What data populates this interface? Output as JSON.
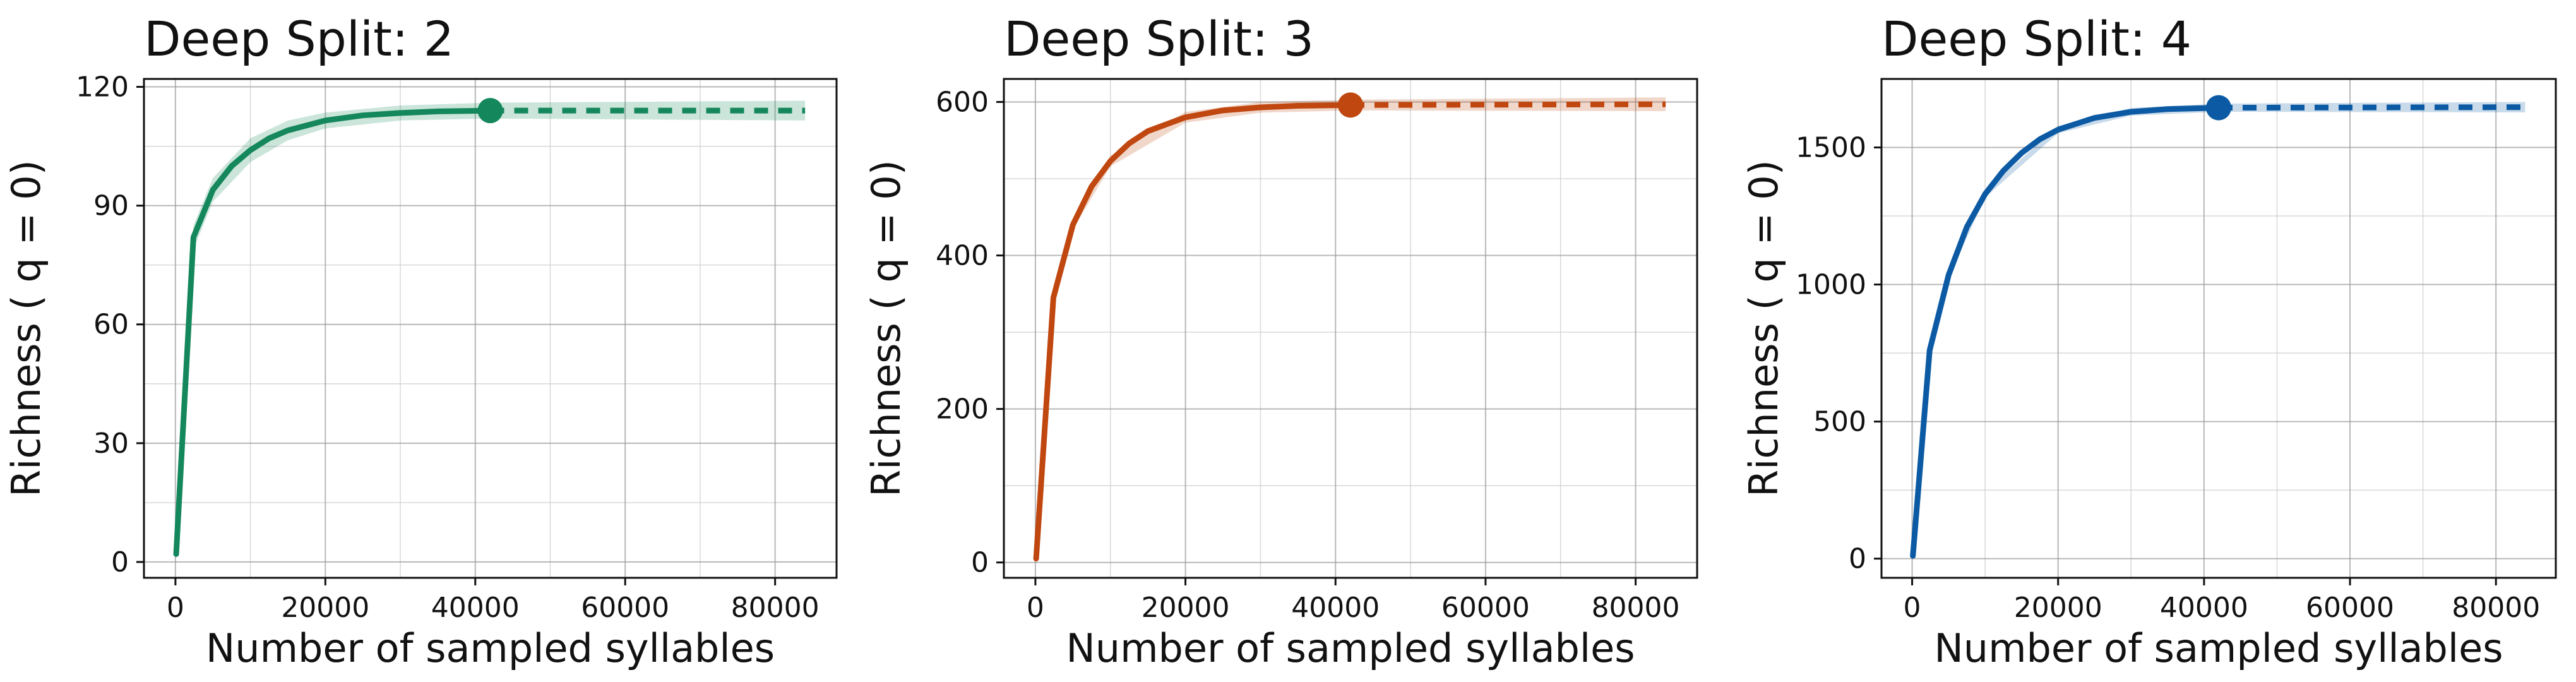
{
  "chart_data": [
    {
      "type": "line",
      "title": "Deep Split: 2",
      "xlabel": "Number of sampled syllables",
      "ylabel": "Richness  ( q = 0)",
      "xlim": [
        -4200,
        88200
      ],
      "ylim": [
        -4,
        122
      ],
      "xticks": [
        0,
        20000,
        40000,
        60000,
        80000
      ],
      "yticks": [
        0,
        30,
        60,
        90,
        120
      ],
      "color": "#14875c",
      "grid": true,
      "observed_point": {
        "x": 42000,
        "y": 114
      },
      "interpolated": [
        [
          100,
          2
        ],
        [
          2400,
          82
        ],
        [
          5000,
          94
        ],
        [
          7500,
          100
        ],
        [
          10000,
          104
        ],
        [
          12500,
          107
        ],
        [
          15000,
          109
        ],
        [
          20000,
          111.5
        ],
        [
          25000,
          112.8
        ],
        [
          30000,
          113.4
        ],
        [
          35000,
          113.8
        ],
        [
          42000,
          114
        ]
      ],
      "extrapolated": [
        [
          42000,
          114
        ],
        [
          84000,
          114
        ]
      ],
      "ci_band": [
        [
          100,
          1,
          3
        ],
        [
          2400,
          79,
          85
        ],
        [
          5000,
          91,
          97
        ],
        [
          10000,
          101,
          107
        ],
        [
          15000,
          106.5,
          111.5
        ],
        [
          20000,
          109.5,
          113.5
        ],
        [
          30000,
          111.5,
          115.3
        ],
        [
          42000,
          112,
          116
        ],
        [
          84000,
          111.5,
          116.5
        ]
      ]
    },
    {
      "type": "line",
      "title": "Deep Split: 3",
      "xlabel": "Number of sampled syllables",
      "ylabel": "Richness  ( q = 0)",
      "xlim": [
        -4200,
        88200
      ],
      "ylim": [
        -20,
        630
      ],
      "xticks": [
        0,
        20000,
        40000,
        60000,
        80000
      ],
      "yticks": [
        0,
        200,
        400,
        600
      ],
      "color": "#c0470f",
      "grid": true,
      "observed_point": {
        "x": 42000,
        "y": 596
      },
      "interpolated": [
        [
          100,
          5
        ],
        [
          2400,
          345
        ],
        [
          5000,
          440
        ],
        [
          7500,
          490
        ],
        [
          10000,
          523
        ],
        [
          12500,
          546
        ],
        [
          15000,
          562
        ],
        [
          20000,
          580
        ],
        [
          25000,
          589
        ],
        [
          30000,
          593
        ],
        [
          35000,
          595
        ],
        [
          42000,
          596
        ]
      ],
      "extrapolated": [
        [
          42000,
          596
        ],
        [
          84000,
          597
        ]
      ],
      "ci_band": [
        [
          100,
          4,
          6
        ],
        [
          2400,
          340,
          350
        ],
        [
          5000,
          434,
          446
        ],
        [
          10000,
          516,
          530
        ],
        [
          20000,
          573,
          587
        ],
        [
          30000,
          586,
          600
        ],
        [
          42000,
          589,
          603
        ],
        [
          84000,
          588,
          606
        ]
      ]
    },
    {
      "type": "line",
      "title": "Deep Split: 4",
      "xlabel": "Number of sampled syllables",
      "ylabel": "Richness  ( q = 0)",
      "xlim": [
        -4200,
        88200
      ],
      "ylim": [
        -70,
        1750
      ],
      "xticks": [
        0,
        20000,
        40000,
        60000,
        80000
      ],
      "yticks": [
        0,
        500,
        1000,
        1500
      ],
      "color": "#0b5aa3",
      "grid": true,
      "observed_point": {
        "x": 42000,
        "y": 1645
      },
      "interpolated": [
        [
          100,
          10
        ],
        [
          2400,
          760
        ],
        [
          5000,
          1035
        ],
        [
          7500,
          1210
        ],
        [
          10000,
          1330
        ],
        [
          12500,
          1415
        ],
        [
          15000,
          1480
        ],
        [
          17500,
          1530
        ],
        [
          20000,
          1565
        ],
        [
          25000,
          1608
        ],
        [
          30000,
          1630
        ],
        [
          35000,
          1640
        ],
        [
          42000,
          1645
        ]
      ],
      "extrapolated": [
        [
          42000,
          1645
        ],
        [
          84000,
          1647
        ]
      ],
      "ci_band": [
        [
          100,
          8,
          12
        ],
        [
          2400,
          752,
          768
        ],
        [
          5000,
          1025,
          1045
        ],
        [
          10000,
          1318,
          1342
        ],
        [
          20000,
          1552,
          1578
        ],
        [
          30000,
          1616,
          1644
        ],
        [
          42000,
          1630,
          1660
        ],
        [
          84000,
          1628,
          1666
        ]
      ]
    }
  ]
}
